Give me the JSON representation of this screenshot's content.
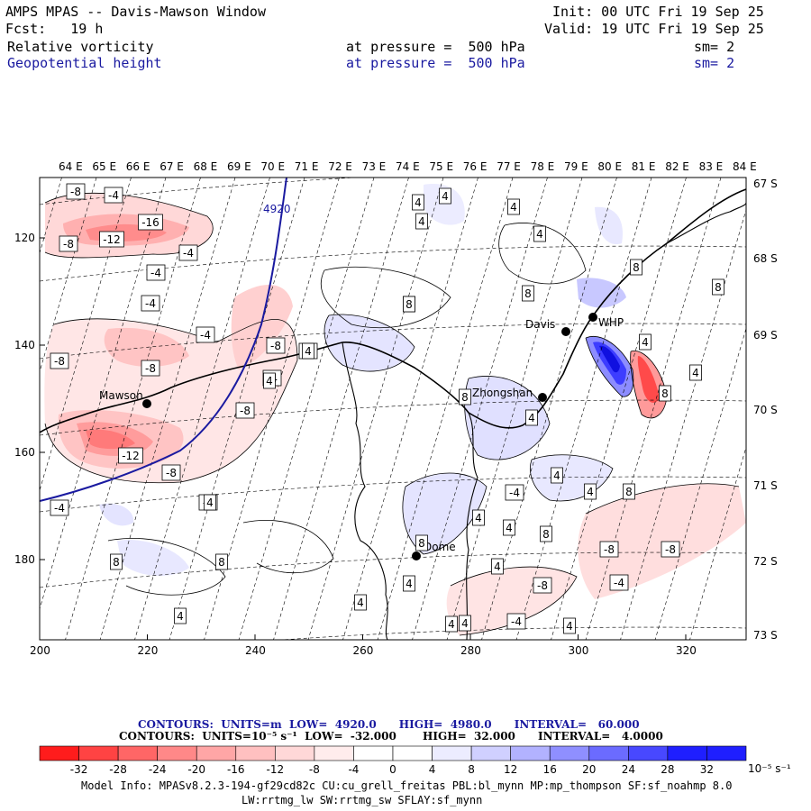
{
  "header": {
    "title": "AMPS MPAS -- Davis-Mawson Window",
    "init": "Init: 00 UTC Fri 19 Sep 25",
    "fcst": "Fcst:   19 h",
    "valid": "Valid: 19 UTC Fri 19 Sep 25",
    "fields": [
      {
        "name": "Relative vorticity",
        "level": "at pressure =  500 hPa",
        "sm": "sm= 2",
        "color": "#000000"
      },
      {
        "name": "Geopotential height",
        "level": "at pressure =  500 hPa",
        "sm": "sm= 2",
        "color": "#1a1aa0"
      }
    ]
  },
  "map": {
    "top_lon_labels": [
      "64 E",
      "65 E",
      "66 E",
      "67 E",
      "68 E",
      "69 E",
      "70 E",
      "71 E",
      "72 E",
      "73 E",
      "74 E",
      "75 E",
      "76 E",
      "77 E",
      "78 E",
      "79 E",
      "80 E",
      "81 E",
      "82 E",
      "83 E",
      "84 E"
    ],
    "right_lat_labels": [
      "67 S",
      "68 S",
      "69 S",
      "70 S",
      "71 S",
      "72 S",
      "73 S"
    ],
    "left_axis_labels": [
      "120",
      "140",
      "160",
      "180"
    ],
    "bottom_axis_labels": [
      "200",
      "220",
      "240",
      "260",
      "280",
      "300",
      "320"
    ],
    "stations": [
      {
        "name": "Mawson"
      },
      {
        "name": "Davis"
      },
      {
        "name": "WHP"
      },
      {
        "name": "Zhongshan"
      },
      {
        "name": "Dome"
      }
    ],
    "height_contour_label": "4920",
    "vorticity_labels": [
      "-8",
      "-4",
      "-16",
      "-12",
      "-8",
      "-4",
      "-4",
      "-4",
      "-4",
      "-8",
      "-8",
      "-4",
      "-8",
      "-8",
      "-12",
      "-8",
      "-4",
      "-4",
      "-8",
      "4",
      "4",
      "4",
      "4",
      "8",
      "8",
      "8",
      "8",
      "4",
      "8",
      "4",
      "4",
      "8",
      "8",
      "4",
      "4",
      "4",
      "4",
      "8",
      "8",
      "-4",
      "8",
      "8",
      "4",
      "4",
      "4",
      "4",
      "4",
      "4",
      "-8",
      "-8",
      "-4",
      "-8",
      "4",
      "4",
      "-4",
      "4",
      "8",
      "4",
      "4"
    ]
  },
  "contours_info": {
    "line1": "CONTOURS:  UNITS=m  LOW=  4920.0      HIGH=  4980.0      INTERVAL=   60.000",
    "line2": "CONTOURS:  UNITS=10⁻⁵ s⁻¹  LOW=  -32.000       HIGH=  32.000      INTERVAL=   4.0000"
  },
  "colorbar": {
    "ticks": [
      "-32",
      "-28",
      "-24",
      "-20",
      "-16",
      "-12",
      "-8",
      "-4",
      "0",
      "4",
      "8",
      "12",
      "16",
      "20",
      "24",
      "28",
      "32"
    ],
    "unit": "10⁻⁵ s⁻¹",
    "colors": [
      "#ff1c1c",
      "#ff4343",
      "#ff6666",
      "#ff8888",
      "#ffa6a6",
      "#ffc0c0",
      "#ffd8d8",
      "#ffecec",
      "#ffffff",
      "#ffffff",
      "#ececff",
      "#d0d0ff",
      "#b2b2ff",
      "#8f8fff",
      "#6b6bff",
      "#4848ff",
      "#1f1fff"
    ]
  },
  "model_info": {
    "line1": "Model Info: MPASv8.2.3-194-gf29cd82c CU:cu_grell_freitas PBL:bl_mynn MP:mp_thompson SF:sf_noahmp 8.0",
    "line2": "LW:rrtmg_lw SW:rrtmg_sw SFLAY:sf_mynn"
  },
  "colors": {
    "height_contour": "#1a1aa0",
    "coast": "#000000",
    "grid": "#000000"
  }
}
